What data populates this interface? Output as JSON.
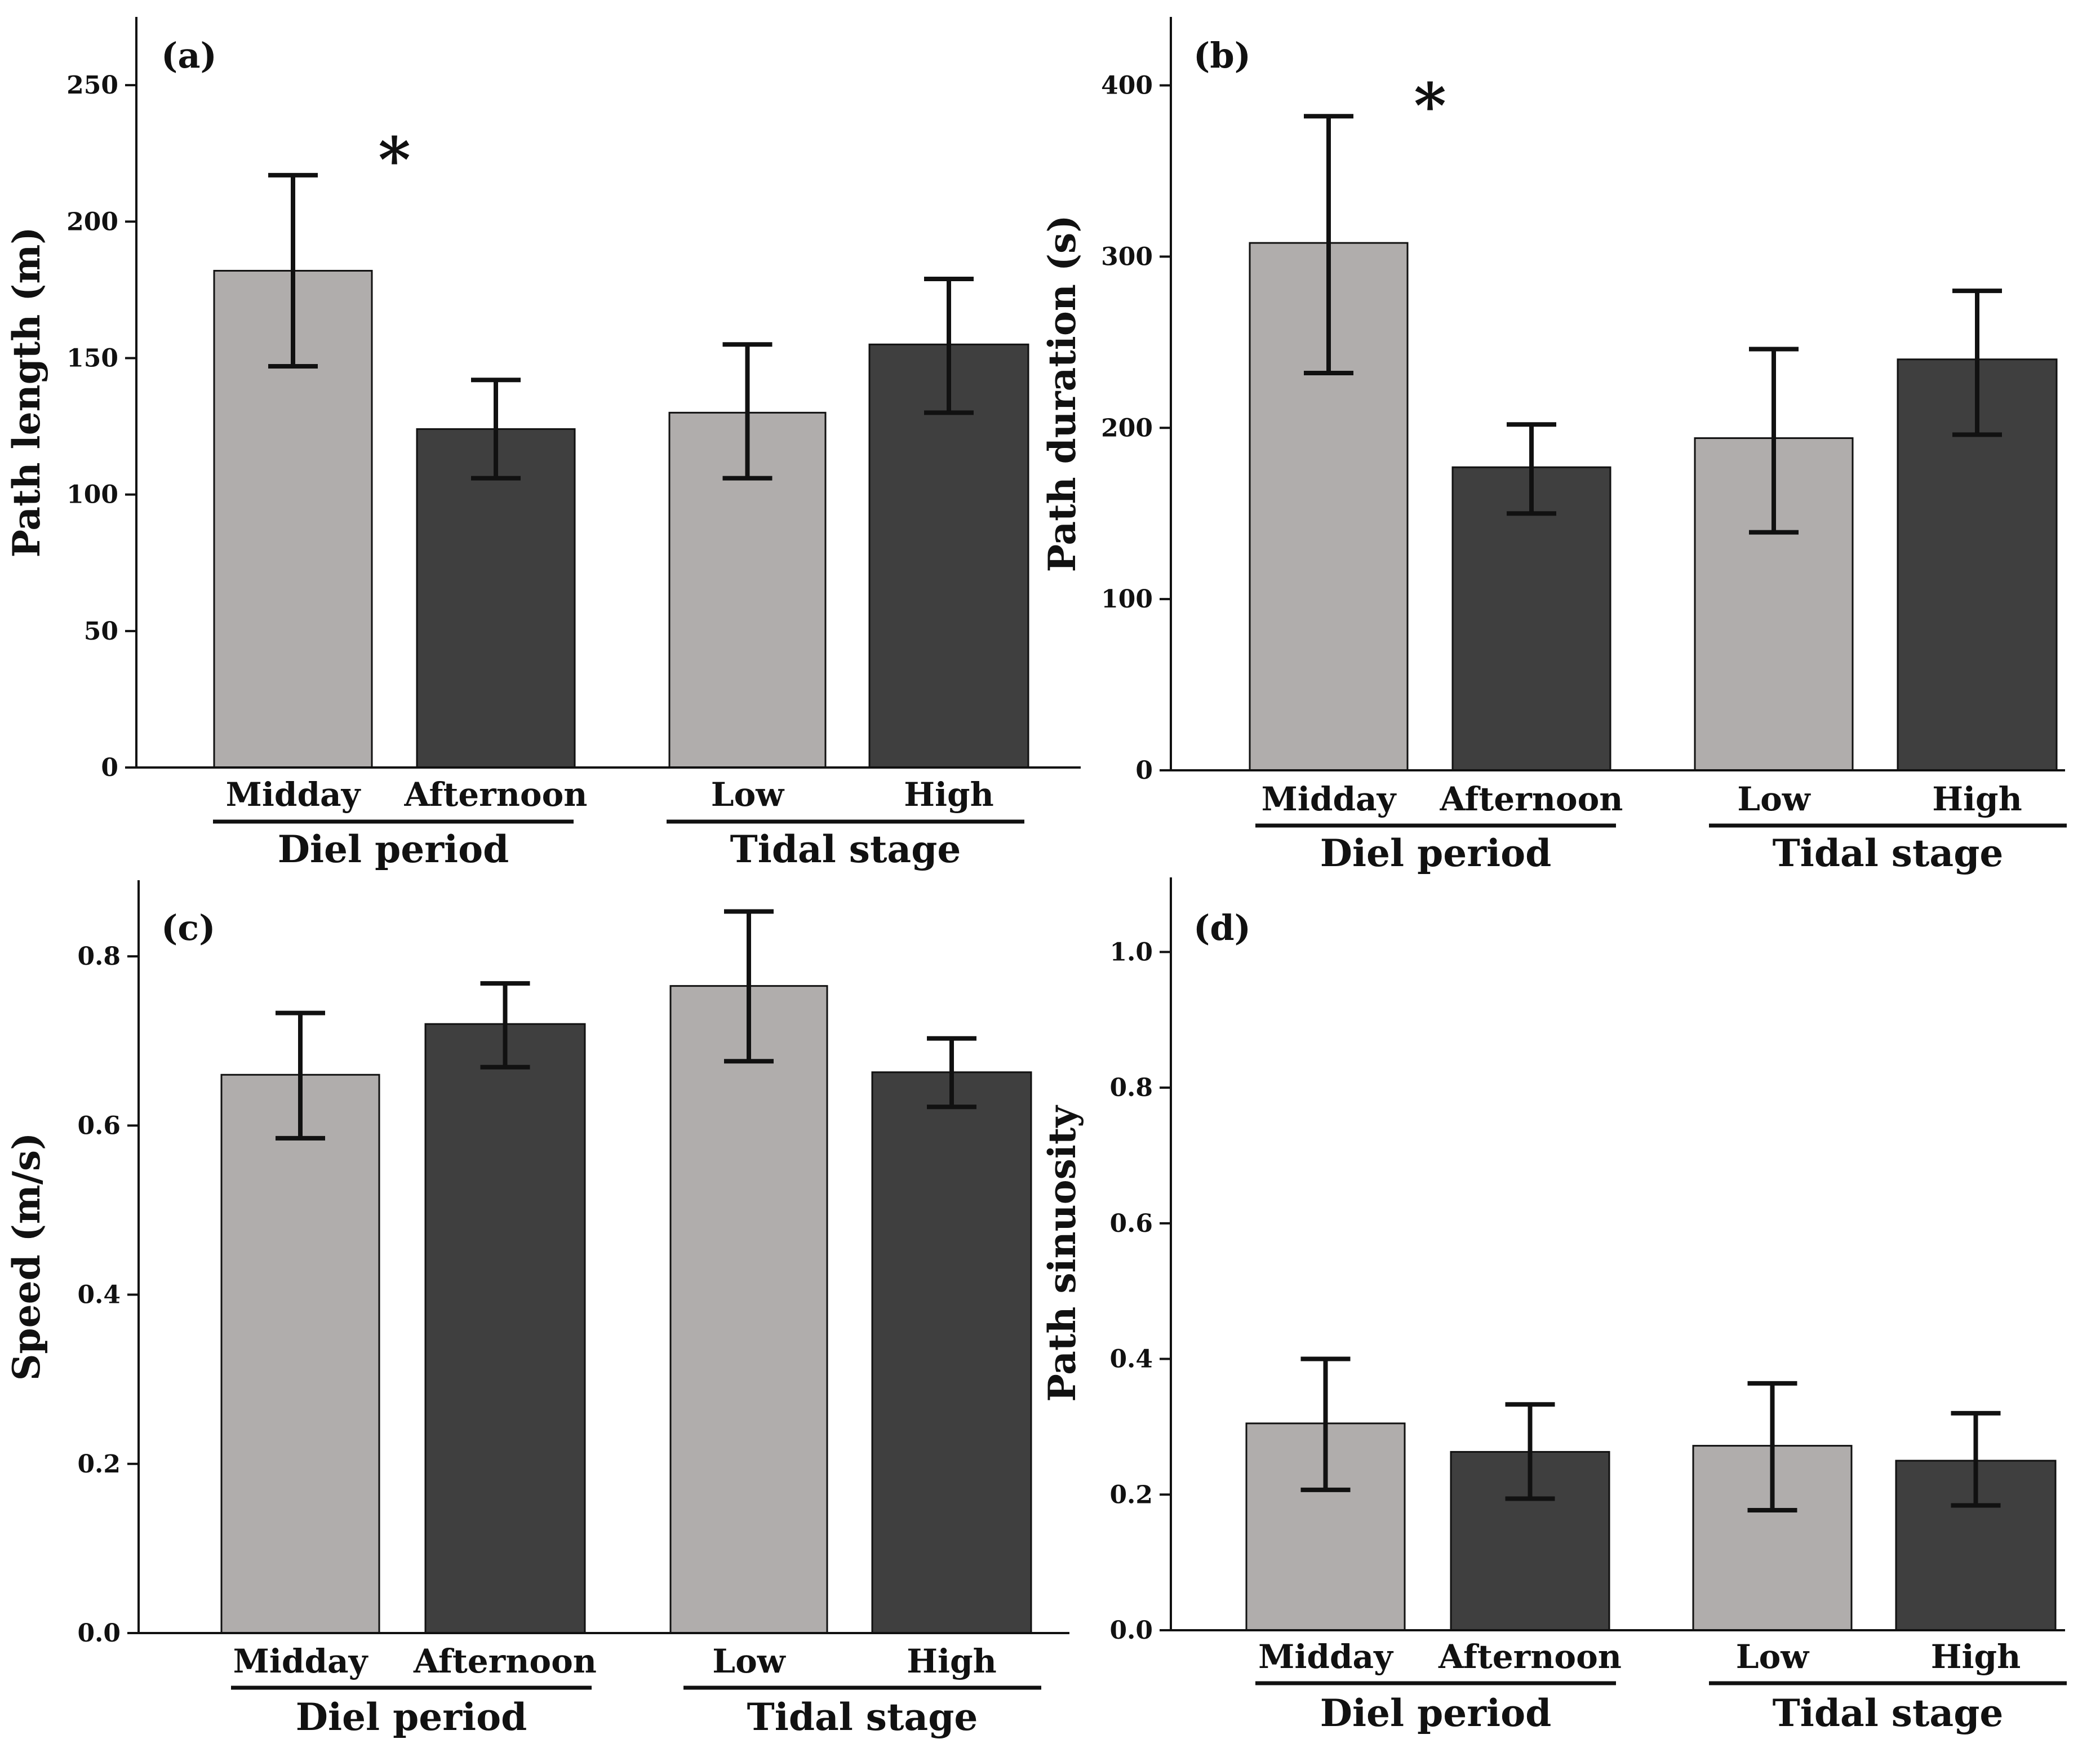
{
  "colors": {
    "light_bar": "#b0adac",
    "dark_bar": "#3f3f3f",
    "axis": "#111111",
    "background": "#ffffff"
  },
  "chart_data": [
    {
      "panel": "(a)",
      "type": "bar",
      "ylabel": "Path length (m)",
      "ylim": [
        0,
        275
      ],
      "yticks": [
        0,
        50,
        100,
        150,
        200,
        250
      ],
      "ytick_labels": [
        "0",
        "50",
        "100",
        "150",
        "200",
        "250"
      ],
      "categories": [
        "Midday",
        "Afternoon",
        "Low",
        "High"
      ],
      "groups": [
        {
          "label": "Diel period",
          "categories": [
            "Midday",
            "Afternoon"
          ]
        },
        {
          "label": "Tidal stage",
          "categories": [
            "Low",
            "High"
          ]
        }
      ],
      "values": [
        182,
        124,
        130,
        155
      ],
      "error_low": [
        147,
        106,
        106,
        130
      ],
      "error_high": [
        217,
        142,
        155,
        179
      ],
      "shades": [
        "light",
        "dark",
        "light",
        "dark"
      ],
      "significance": {
        "label": "*",
        "between": [
          "Midday",
          "Afternoon"
        ],
        "y": 225
      },
      "grid": false
    },
    {
      "panel": "(b)",
      "type": "bar",
      "ylabel": "Path duration (s)",
      "ylim": [
        0,
        440
      ],
      "yticks": [
        0,
        100,
        200,
        300,
        400
      ],
      "ytick_labels": [
        "0",
        "100",
        "200",
        "300",
        "400"
      ],
      "categories": [
        "Midday",
        "Afternoon",
        "Low",
        "High"
      ],
      "groups": [
        {
          "label": "Diel period",
          "categories": [
            "Midday",
            "Afternoon"
          ]
        },
        {
          "label": "Tidal stage",
          "categories": [
            "Low",
            "High"
          ]
        }
      ],
      "values": [
        308,
        177,
        194,
        240
      ],
      "error_low": [
        232,
        150,
        139,
        196
      ],
      "error_high": [
        382,
        202,
        246,
        280
      ],
      "shades": [
        "light",
        "dark",
        "light",
        "dark"
      ],
      "significance": {
        "label": "*",
        "between": [
          "Midday",
          "Afternoon"
        ],
        "y": 392
      },
      "grid": false
    },
    {
      "panel": "(c)",
      "type": "bar",
      "ylabel": "Speed (m/s)",
      "ylim": [
        0,
        0.89
      ],
      "yticks": [
        0.0,
        0.2,
        0.4,
        0.6,
        0.8
      ],
      "ytick_labels": [
        "0.0",
        "0.2",
        "0.4",
        "0.6",
        "0.8"
      ],
      "categories": [
        "Midday",
        "Afternoon",
        "Low",
        "High"
      ],
      "groups": [
        {
          "label": "Diel period",
          "categories": [
            "Midday",
            "Afternoon"
          ]
        },
        {
          "label": "Tidal stage",
          "categories": [
            "Low",
            "High"
          ]
        }
      ],
      "values": [
        0.66,
        0.72,
        0.765,
        0.663
      ],
      "error_low": [
        0.585,
        0.669,
        0.676,
        0.622
      ],
      "error_high": [
        0.733,
        0.768,
        0.853,
        0.703
      ],
      "shades": [
        "light",
        "dark",
        "light",
        "dark"
      ],
      "significance": null,
      "grid": false
    },
    {
      "panel": "(d)",
      "type": "bar",
      "ylabel": "Path sinuosity",
      "ylim": [
        0,
        1.11
      ],
      "yticks": [
        0.0,
        0.2,
        0.4,
        0.6,
        0.8,
        1.0
      ],
      "ytick_labels": [
        "0.0",
        "0.2",
        "0.4",
        "0.6",
        "0.8",
        "1.0"
      ],
      "categories": [
        "Midday",
        "Afternoon",
        "Low",
        "High"
      ],
      "groups": [
        {
          "label": "Diel period",
          "categories": [
            "Midday",
            "Afternoon"
          ]
        },
        {
          "label": "Tidal stage",
          "categories": [
            "Low",
            "High"
          ]
        }
      ],
      "values": [
        0.305,
        0.263,
        0.272,
        0.25
      ],
      "error_low": [
        0.207,
        0.194,
        0.177,
        0.184
      ],
      "error_high": [
        0.4,
        0.333,
        0.364,
        0.32
      ],
      "shades": [
        "light",
        "dark",
        "light",
        "dark"
      ],
      "significance": null,
      "grid": false
    }
  ]
}
